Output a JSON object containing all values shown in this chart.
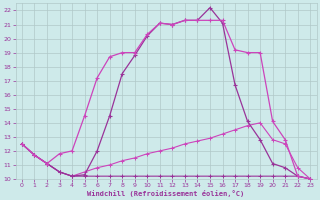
{
  "xlabel": "Windchill (Refroidissement éolien,°C)",
  "xlim": [
    -0.5,
    23.5
  ],
  "ylim": [
    10,
    22.5
  ],
  "yticks": [
    10,
    11,
    12,
    13,
    14,
    15,
    16,
    17,
    18,
    19,
    20,
    21,
    22
  ],
  "xticks": [
    0,
    1,
    2,
    3,
    4,
    5,
    6,
    7,
    8,
    9,
    10,
    11,
    12,
    13,
    14,
    15,
    16,
    17,
    18,
    19,
    20,
    21,
    22,
    23
  ],
  "bg_color": "#ceeaea",
  "line_color1": "#993399",
  "line_color2": "#cc44bb",
  "grid_color": "#b0c8c8",
  "curve1_x": [
    0,
    1,
    2,
    3,
    4,
    5,
    6,
    7,
    8,
    9,
    10,
    11,
    12,
    13,
    14,
    15,
    16,
    17,
    18,
    19,
    20,
    21,
    22,
    23
  ],
  "curve1_y": [
    12.5,
    11.7,
    11.1,
    10.5,
    10.2,
    10.3,
    12.0,
    14.5,
    17.5,
    18.8,
    20.2,
    21.1,
    21.0,
    21.3,
    21.3,
    22.2,
    21.1,
    16.7,
    14.1,
    12.8,
    11.1,
    10.8,
    10.2,
    10.0
  ],
  "curve2_x": [
    0,
    1,
    2,
    3,
    4,
    5,
    6,
    7,
    8,
    9,
    10,
    11,
    12,
    13,
    14,
    15,
    16,
    17,
    18,
    19,
    20,
    21,
    22,
    23
  ],
  "curve2_y": [
    12.5,
    11.7,
    11.1,
    11.8,
    12.0,
    14.5,
    17.2,
    18.7,
    19.0,
    19.0,
    20.3,
    21.1,
    21.0,
    21.3,
    21.3,
    21.3,
    21.3,
    19.2,
    19.0,
    19.0,
    14.1,
    12.8,
    10.2,
    10.0
  ],
  "curve3_x": [
    0,
    1,
    2,
    3,
    4,
    5,
    6,
    7,
    8,
    9,
    10,
    11,
    12,
    13,
    14,
    15,
    16,
    17,
    18,
    19,
    20,
    21,
    22,
    23
  ],
  "curve3_y": [
    12.5,
    11.7,
    11.1,
    10.5,
    10.2,
    10.2,
    10.2,
    10.2,
    10.2,
    10.2,
    10.2,
    10.2,
    10.2,
    10.2,
    10.2,
    10.2,
    10.2,
    10.2,
    10.2,
    10.2,
    10.2,
    10.2,
    10.2,
    10.0
  ],
  "curve4_x": [
    0,
    1,
    2,
    3,
    4,
    5,
    6,
    7,
    8,
    9,
    10,
    11,
    12,
    13,
    14,
    15,
    16,
    17,
    18,
    19,
    20,
    21,
    22,
    23
  ],
  "curve4_y": [
    12.5,
    11.7,
    11.1,
    10.5,
    10.2,
    10.5,
    10.8,
    11.0,
    11.3,
    11.5,
    11.8,
    12.0,
    12.2,
    12.5,
    12.7,
    12.9,
    13.2,
    13.5,
    13.8,
    14.0,
    12.8,
    12.5,
    10.8,
    10.0
  ]
}
